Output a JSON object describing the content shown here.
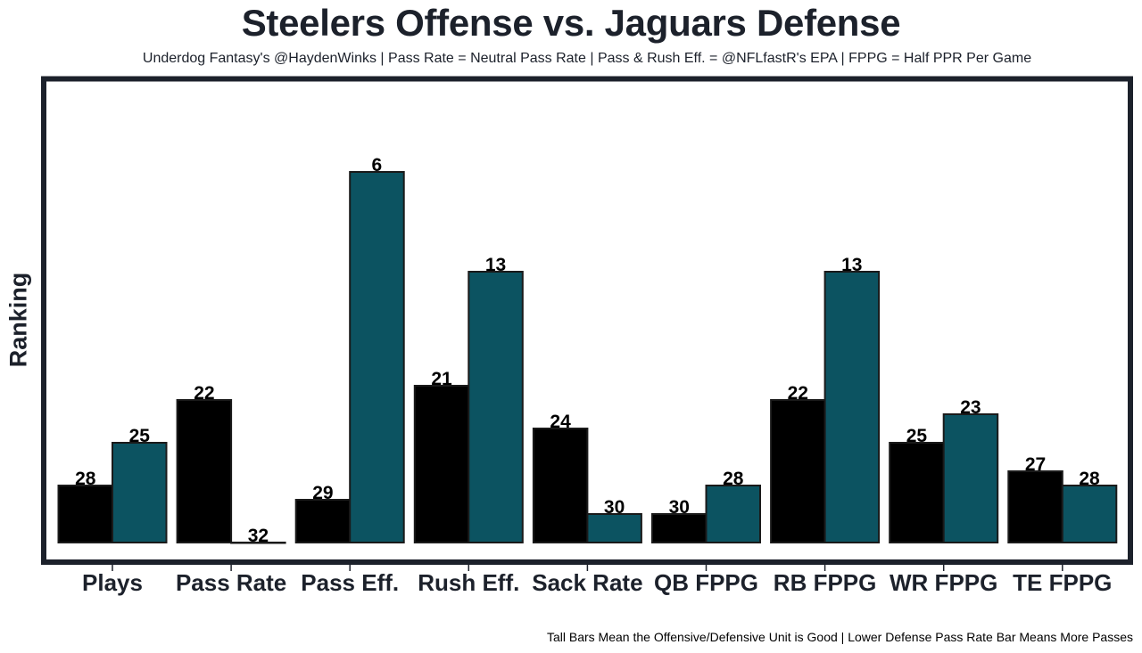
{
  "chart_data": {
    "type": "bar",
    "title": "Steelers Offense vs. Jaguars Defense",
    "subtitle": "Underdog Fantasy's @HaydenWinks | Pass Rate = Neutral Pass Rate | Pass & Rush Eff. = @NFLfastR's EPA | FPPG = Half PPR Per Game",
    "caption": "Tall Bars Mean the Offensive/Defensive Unit is Good | Lower Defense Pass Rate Bar Means More Passes",
    "xlabel": "",
    "ylabel": "Ranking",
    "categories": [
      "Plays",
      "Pass Rate",
      "Pass Eff.",
      "Rush Eff.",
      "Sack Rate",
      "QB FPPG",
      "RB FPPG",
      "WR FPPG",
      "TE FPPG"
    ],
    "series": [
      {
        "name": "Steelers Offense",
        "color": "#000000",
        "values": [
          28,
          22,
          29,
          21,
          24,
          30,
          22,
          25,
          27
        ]
      },
      {
        "name": "Jaguars Defense",
        "color": "#0c5361",
        "values": [
          25,
          32,
          6,
          13,
          30,
          28,
          13,
          23,
          28
        ]
      }
    ],
    "value_meaning": "rank (1 = best); bar height = 32 - rank",
    "ylim_rank": [
      32,
      5
    ],
    "grid": false,
    "legend": "none",
    "frame_color": "#1c212b"
  }
}
